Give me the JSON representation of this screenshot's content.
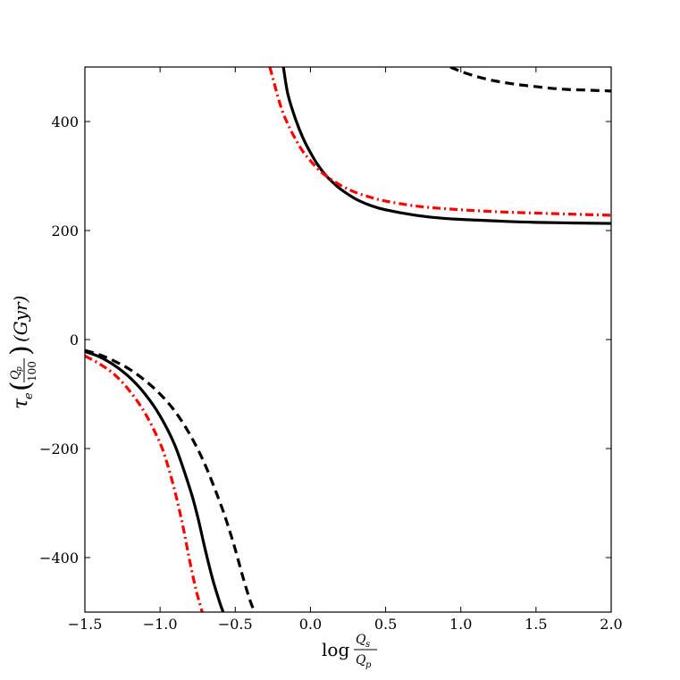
{
  "chart_data": {
    "type": "line",
    "title": "",
    "xlabel": {
      "prefix": "log",
      "numerator": "Q",
      "numerator_sub": "s",
      "denominator": "Q",
      "denominator_sub": "p"
    },
    "ylabel": {
      "tau": "τ",
      "tau_sub": "e",
      "frac_numerator": "Q",
      "frac_numerator_sub": "p",
      "frac_denominator": "100",
      "unit": "(Gyr)"
    },
    "xlim": [
      -1.5,
      2.0
    ],
    "ylim": [
      -500,
      500
    ],
    "xticks": [
      -1.5,
      -1.0,
      -0.5,
      0.0,
      0.5,
      1.0,
      1.5,
      2.0
    ],
    "xtick_labels": [
      "−1.5",
      "−1.0",
      "−0.5",
      "0.0",
      "0.5",
      "1.0",
      "1.5",
      "2.0"
    ],
    "yticks": [
      -400,
      -200,
      0,
      200,
      400
    ],
    "ytick_labels": [
      "−400",
      "−200",
      "0",
      "200",
      "400"
    ],
    "grid": false,
    "legend": "none",
    "series": [
      {
        "style": "solid",
        "color": "#000000",
        "segments": [
          {
            "x": [
              -1.5,
              -1.4,
              -1.3,
              -1.2,
              -1.1,
              -1.0,
              -0.9,
              -0.8,
              -0.75,
              -0.7,
              -0.65,
              -0.6,
              -0.58
            ],
            "y": [
              -22,
              -32,
              -48,
              -70,
              -100,
              -140,
              -195,
              -275,
              -325,
              -385,
              -440,
              -485,
              -500
            ]
          },
          {
            "x": [
              -0.18,
              -0.15,
              -0.1,
              -0.05,
              0.0,
              0.05,
              0.1,
              0.15,
              0.2,
              0.3,
              0.4,
              0.5,
              0.7,
              0.9,
              1.2,
              1.5,
              2.0
            ],
            "y": [
              500,
              450,
              405,
              370,
              343,
              320,
              302,
              288,
              276,
              258,
              246,
              238,
              228,
              222,
              218,
              215,
              213
            ]
          }
        ]
      },
      {
        "style": "dashed",
        "color": "#000000",
        "segments": [
          {
            "x": [
              -1.5,
              -1.4,
              -1.3,
              -1.2,
              -1.1,
              -1.0,
              -0.9,
              -0.8,
              -0.7,
              -0.6,
              -0.55,
              -0.5,
              -0.45,
              -0.4,
              -0.37
            ],
            "y": [
              -20,
              -28,
              -40,
              -55,
              -75,
              -100,
              -132,
              -175,
              -230,
              -300,
              -340,
              -385,
              -435,
              -480,
              -500
            ]
          },
          {
            "x": [
              0.93,
              1.0,
              1.1,
              1.2,
              1.3,
              1.4,
              1.5,
              1.6,
              1.7,
              1.8,
              1.9,
              2.0
            ],
            "y": [
              500,
              492,
              483,
              476,
              471,
              467,
              464,
              461,
              459,
              458,
              457,
              456
            ]
          }
        ]
      },
      {
        "style": "dashdot",
        "color": "#ff0000",
        "segments": [
          {
            "x": [
              -1.5,
              -1.4,
              -1.3,
              -1.2,
              -1.1,
              -1.0,
              -0.95,
              -0.9,
              -0.85,
              -0.8,
              -0.76,
              -0.72
            ],
            "y": [
              -30,
              -45,
              -65,
              -95,
              -135,
              -190,
              -230,
              -280,
              -340,
              -410,
              -460,
              -500
            ]
          },
          {
            "x": [
              -0.27,
              -0.2,
              -0.15,
              -0.1,
              -0.05,
              0.0,
              0.05,
              0.1,
              0.2,
              0.3,
              0.4,
              0.5,
              0.7,
              0.9,
              1.2,
              1.5,
              2.0
            ],
            "y": [
              500,
              430,
              395,
              368,
              345,
              328,
              313,
              301,
              283,
              270,
              261,
              254,
              245,
              240,
              235,
              232,
              228
            ]
          }
        ]
      }
    ]
  }
}
